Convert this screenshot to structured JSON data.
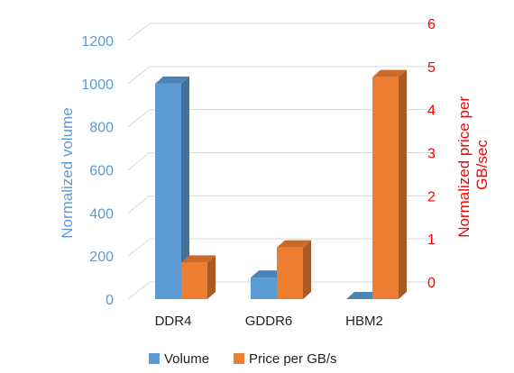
{
  "chart_data": {
    "type": "bar",
    "categories": [
      "DDR4",
      "GDDR6",
      "HBM2"
    ],
    "series": [
      {
        "name": "Volume",
        "axis": "left",
        "color": "#5b9bd5",
        "values": [
          1000,
          100,
          0
        ]
      },
      {
        "name": "Price per GB/s",
        "axis": "right",
        "color": "#ed7d31",
        "values": [
          0.85,
          1.2,
          5.15
        ]
      }
    ],
    "ylabel_left": "Normalized volume",
    "ylabel_right": [
      "Normalized price per",
      "GB/sec"
    ],
    "ylim_left": [
      0,
      1200
    ],
    "ylim_right": [
      0,
      6
    ],
    "yticks_left": [
      "0",
      "200",
      "400",
      "600",
      "800",
      "1000",
      "1200"
    ],
    "yticks_right": [
      "0",
      "1",
      "2",
      "3",
      "4",
      "5",
      "6"
    ],
    "left_axis_color": "#5b9bd5",
    "right_axis_color": "#ff0000",
    "grid": true,
    "style": "3d-column",
    "legend_position": "bottom"
  }
}
